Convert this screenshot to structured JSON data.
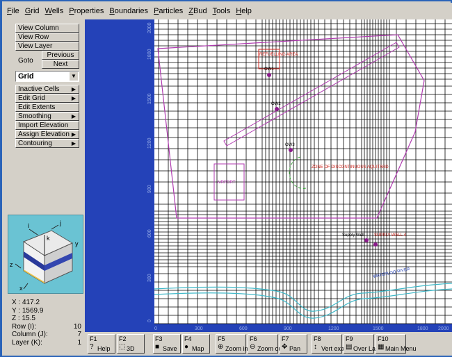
{
  "menu": [
    "File",
    "Grid",
    "Wells",
    "Properties",
    "Boundaries",
    "Particles",
    "ZBud",
    "Tools",
    "Help"
  ],
  "panel": {
    "view_column": "View Column",
    "view_row": "View Row",
    "view_layer": "View Layer",
    "goto": "Goto",
    "previous": "Previous",
    "next": "Next",
    "mode": "Grid",
    "grid_menu": [
      {
        "label": "Inactive Cells",
        "has_submenu": true
      },
      {
        "label": "Edit Grid",
        "has_submenu": true
      },
      {
        "label": "Edit Extents",
        "has_submenu": false
      },
      {
        "label": "Smoothing",
        "has_submenu": true
      },
      {
        "label": "Import Elevation",
        "has_submenu": false
      },
      {
        "label": "Assign Elevation",
        "has_submenu": true
      },
      {
        "label": "Contouring",
        "has_submenu": true
      }
    ]
  },
  "cube": {
    "labels": [
      "i",
      "j",
      "k",
      "x",
      "y",
      "z"
    ]
  },
  "readout": {
    "x": "X : 417.2",
    "y": "Y : 1569.9",
    "z": "Z : 15.5",
    "row_label": "Row   (I):",
    "row_value": "10",
    "col_label": "Column (J):",
    "col_value": "7",
    "layer_label": "Layer  (K):",
    "layer_value": "1"
  },
  "plot": {
    "x_ticks": [
      "0",
      "300",
      "600",
      "900",
      "1200",
      "1500",
      "1800",
      "2000"
    ],
    "y_ticks": [
      "2000",
      "1800",
      "1500",
      "1200",
      "900",
      "600",
      "300",
      "0"
    ],
    "annotations": {
      "refueling_area": "REFUELLING AREA",
      "airport": "AIRPORT",
      "zone": "ZONE OF DISCONTINUOUS AQUITARD",
      "river": "WATERLOO RIVER",
      "supply_well_small": "Supply Well",
      "supply_well_red": "SUPPLY WELL 4",
      "ow1": "OW1",
      "ow2": "OW2",
      "ow3": "OW3"
    },
    "colors": {
      "background": "#2442b8",
      "grid": "#000000",
      "boundary": "#b03ab0",
      "annotation": "#d0261e",
      "river": "#3fb8c8",
      "zone": "#3aa83a",
      "well": "#8b1b8b"
    }
  },
  "toolbar": [
    {
      "key": "F1",
      "label": "Help",
      "icon": "help-icon"
    },
    {
      "key": "F2",
      "label": "3D",
      "icon": "3d-icon"
    },
    {
      "key": "F3",
      "label": "Save",
      "icon": "save-icon"
    },
    {
      "key": "F4",
      "label": "Map",
      "icon": "map-icon"
    },
    {
      "key": "F5",
      "label": "Zoom in",
      "icon": "zoom-in-icon"
    },
    {
      "key": "F6",
      "label": "Zoom out",
      "icon": "zoom-out-icon"
    },
    {
      "key": "F7",
      "label": "Pan",
      "icon": "pan-icon"
    },
    {
      "key": "F8",
      "label": "Vert exag",
      "icon": "vert-exag-icon"
    },
    {
      "key": "F9",
      "label": "Over Lay",
      "icon": "overlay-icon"
    },
    {
      "key": "F10",
      "label": "Main Menu",
      "icon": "main-menu-icon"
    }
  ]
}
